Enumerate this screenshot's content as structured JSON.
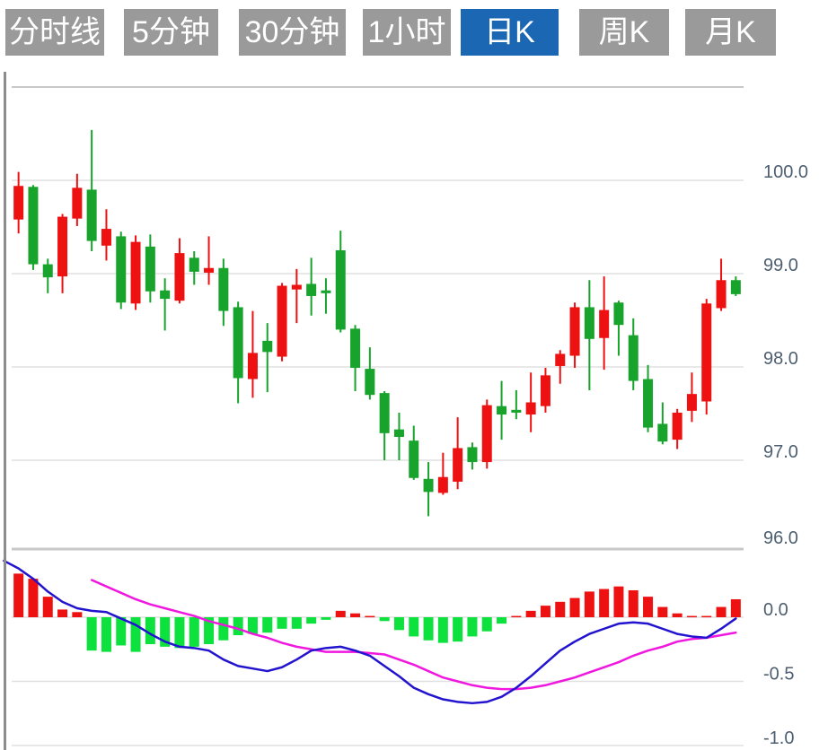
{
  "tabs": [
    {
      "label": "分时线",
      "active": false
    },
    {
      "label": "5分钟",
      "active": false
    },
    {
      "label": "30分钟",
      "active": false
    },
    {
      "label": "1小时",
      "active": false
    },
    {
      "label": "日K",
      "active": true
    },
    {
      "label": "周K",
      "active": false
    },
    {
      "label": "月K",
      "active": false
    }
  ],
  "colors": {
    "tab_bg": "#9a9a9a",
    "tab_active_bg": "#1b67b3",
    "tab_text": "#ffffff",
    "up": "#ee1111",
    "down": "#18a32c",
    "hist_up": "#ee1111",
    "hist_down": "#0ce13e",
    "dif_line": "#2213cf",
    "dea_line": "#f017df",
    "grid": "#e0e0e0",
    "grid_dark": "#c8c8c8",
    "axis_text": "#4d5e70",
    "border": "#8c8c8c"
  },
  "chart_data": {
    "type": "candlestick",
    "panels": [
      "price-kline",
      "macd-indicator"
    ],
    "price_axis": {
      "gridline_prices": [
        101.0,
        100.0,
        99.0,
        98.0,
        97.0
      ],
      "top_price": 101.0,
      "ticks": [
        {
          "label": "100.0",
          "price": 100.0
        },
        {
          "label": "99.0",
          "price": 99.0
        },
        {
          "label": "98.0",
          "price": 98.0
        },
        {
          "label": "97.0",
          "price": 97.0
        },
        {
          "label": "96.0",
          "price": 96.0
        }
      ]
    },
    "candles_format": "[open, high, low, close]",
    "candles": [
      [
        99.58,
        100.09,
        99.43,
        99.94
      ],
      [
        99.93,
        99.95,
        99.04,
        99.1
      ],
      [
        99.1,
        99.16,
        98.79,
        98.96
      ],
      [
        98.97,
        99.64,
        98.79,
        99.61
      ],
      [
        99.59,
        100.07,
        99.51,
        99.92
      ],
      [
        99.9,
        100.54,
        99.24,
        99.35
      ],
      [
        99.3,
        99.69,
        99.14,
        99.48
      ],
      [
        99.4,
        99.45,
        98.62,
        98.69
      ],
      [
        98.68,
        99.41,
        98.61,
        99.34
      ],
      [
        99.29,
        99.42,
        98.69,
        98.81
      ],
      [
        98.82,
        98.95,
        98.39,
        98.73
      ],
      [
        98.71,
        99.38,
        98.68,
        99.22
      ],
      [
        99.17,
        99.24,
        98.88,
        99.02
      ],
      [
        99.01,
        99.4,
        98.88,
        99.06
      ],
      [
        99.06,
        99.16,
        98.44,
        98.6
      ],
      [
        98.64,
        98.7,
        97.61,
        97.88
      ],
      [
        97.87,
        98.6,
        97.67,
        98.15
      ],
      [
        98.28,
        98.47,
        97.73,
        98.16
      ],
      [
        98.11,
        98.9,
        98.06,
        98.87
      ],
      [
        98.83,
        99.05,
        98.47,
        98.88
      ],
      [
        98.89,
        99.17,
        98.55,
        98.76
      ],
      [
        98.82,
        98.95,
        98.57,
        98.79
      ],
      [
        99.25,
        99.46,
        98.37,
        98.4
      ],
      [
        98.41,
        98.45,
        97.74,
        97.99
      ],
      [
        97.98,
        98.21,
        97.65,
        97.7
      ],
      [
        97.72,
        97.74,
        97.0,
        97.29
      ],
      [
        97.33,
        97.51,
        97.0,
        97.25
      ],
      [
        97.21,
        97.37,
        96.79,
        96.81
      ],
      [
        96.8,
        96.98,
        96.4,
        96.66
      ],
      [
        96.65,
        97.08,
        96.63,
        96.82
      ],
      [
        96.77,
        97.46,
        96.69,
        97.13
      ],
      [
        97.14,
        97.19,
        96.9,
        96.98
      ],
      [
        96.98,
        97.65,
        96.91,
        97.59
      ],
      [
        97.58,
        97.85,
        97.22,
        97.49
      ],
      [
        97.54,
        97.75,
        97.44,
        97.51
      ],
      [
        97.49,
        97.94,
        97.3,
        97.62
      ],
      [
        97.58,
        97.99,
        97.51,
        97.91
      ],
      [
        98.01,
        98.18,
        97.82,
        98.14
      ],
      [
        98.12,
        98.69,
        97.99,
        98.64
      ],
      [
        98.64,
        98.93,
        97.75,
        98.3
      ],
      [
        98.31,
        98.97,
        97.97,
        98.61
      ],
      [
        98.69,
        98.71,
        98.12,
        98.45
      ],
      [
        98.34,
        98.52,
        97.75,
        97.85
      ],
      [
        97.87,
        98.02,
        97.3,
        97.35
      ],
      [
        97.39,
        97.62,
        97.17,
        97.2
      ],
      [
        97.22,
        97.55,
        97.12,
        97.51
      ],
      [
        97.53,
        97.94,
        97.41,
        97.71
      ],
      [
        97.63,
        98.73,
        97.49,
        98.68
      ],
      [
        98.63,
        99.16,
        98.6,
        98.93
      ],
      [
        98.93,
        98.97,
        98.76,
        98.78
      ]
    ],
    "macd": {
      "axis_ticks": [
        {
          "label": "0.0",
          "value": 0.0
        },
        {
          "label": "-0.5",
          "value": -0.5
        },
        {
          "label": "-1.0",
          "value": -1.0
        }
      ],
      "hist": [
        0.34,
        0.3,
        0.16,
        0.06,
        0.04,
        -0.26,
        -0.27,
        -0.22,
        -0.27,
        -0.21,
        -0.23,
        -0.24,
        -0.23,
        -0.21,
        -0.18,
        -0.14,
        -0.13,
        -0.12,
        -0.09,
        -0.09,
        -0.05,
        -0.02,
        0.05,
        0.03,
        0.01,
        -0.03,
        -0.1,
        -0.15,
        -0.18,
        -0.2,
        -0.19,
        -0.15,
        -0.11,
        -0.05,
        0.01,
        0.05,
        0.09,
        0.12,
        0.15,
        0.2,
        0.22,
        0.24,
        0.21,
        0.16,
        0.08,
        0.03,
        0.01,
        0.01,
        0.08,
        0.14
      ],
      "dif": {
        "start_index": -1,
        "values": [
          0.44,
          0.38,
          0.3,
          0.2,
          0.12,
          0.07,
          0.05,
          0.04,
          -0.01,
          -0.06,
          -0.13,
          -0.19,
          -0.23,
          -0.24,
          -0.26,
          -0.33,
          -0.38,
          -0.4,
          -0.42,
          -0.39,
          -0.33,
          -0.26,
          -0.24,
          -0.23,
          -0.26,
          -0.3,
          -0.38,
          -0.46,
          -0.55,
          -0.6,
          -0.64,
          -0.66,
          -0.67,
          -0.66,
          -0.62,
          -0.55,
          -0.46,
          -0.36,
          -0.26,
          -0.19,
          -0.13,
          -0.09,
          -0.05,
          -0.04,
          -0.05,
          -0.09,
          -0.13,
          -0.15,
          -0.16,
          -0.09,
          -0.01
        ]
      },
      "dea": {
        "start_index": 5,
        "values": [
          0.29,
          0.24,
          0.19,
          0.14,
          0.1,
          0.07,
          0.04,
          0.01,
          -0.03,
          -0.06,
          -0.09,
          -0.13,
          -0.16,
          -0.2,
          -0.23,
          -0.25,
          -0.27,
          -0.27,
          -0.27,
          -0.28,
          -0.29,
          -0.33,
          -0.37,
          -0.42,
          -0.47,
          -0.5,
          -0.53,
          -0.55,
          -0.56,
          -0.56,
          -0.55,
          -0.53,
          -0.5,
          -0.47,
          -0.43,
          -0.39,
          -0.35,
          -0.3,
          -0.26,
          -0.23,
          -0.19,
          -0.17,
          -0.16,
          -0.14,
          -0.12
        ]
      }
    }
  }
}
